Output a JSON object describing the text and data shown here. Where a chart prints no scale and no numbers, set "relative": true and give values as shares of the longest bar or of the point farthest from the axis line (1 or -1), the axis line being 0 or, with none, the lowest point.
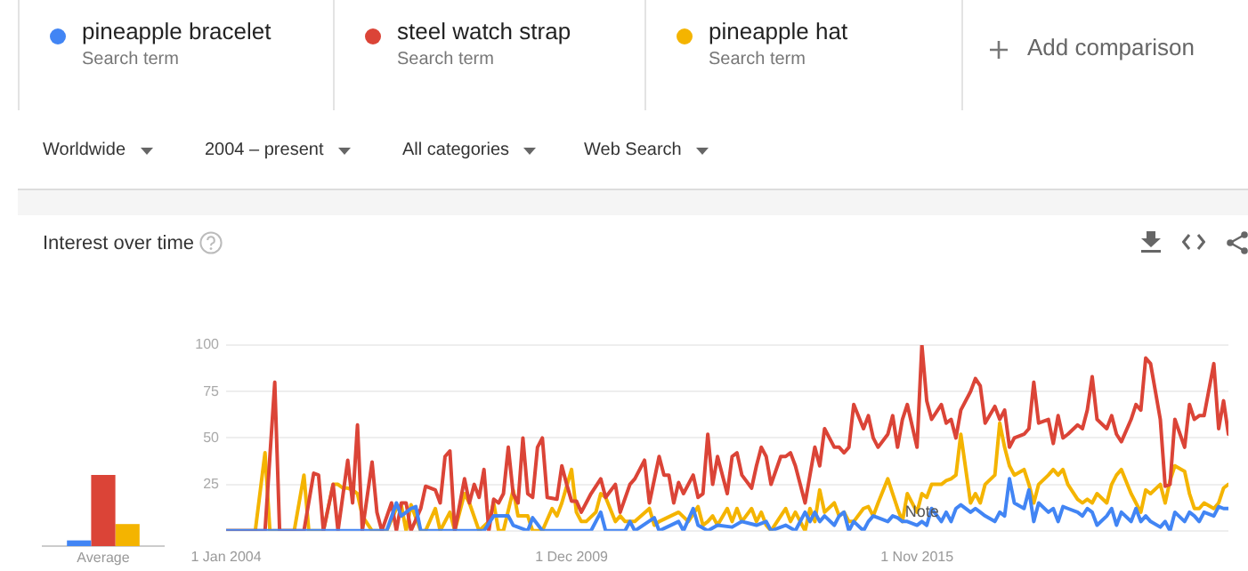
{
  "chart_data": [
    {
      "type": "other",
      "annotations": [
        "Search term",
        "Search term",
        "Search term",
        "Add comparison",
        "Worldwide",
        "2004 – present",
        "All categories",
        "Web Search"
      ]
    },
    {
      "type": "bar",
      "relative": true,
      "categories": [
        "Average"
      ],
      "series": [
        {
          "color": "#4285f4",
          "values": [
            0.08
          ]
        },
        {
          "color": "#db4437",
          "values": [
            1
          ]
        },
        {
          "color": "#f4b400",
          "values": [
            0.31
          ]
        }
      ]
    },
    {
      "type": "line",
      "title": "Interest over time",
      "legend": "top",
      "grid": "y",
      "marker": "none",
      "line_style": "solid",
      "xlim": [
        "2004-01",
        "2021-03"
      ],
      "xticks": [
        {
          "value": "2004-01",
          "label": "1 Jan 2004"
        },
        {
          "value": "2009-12",
          "label": "1 Dec 2009"
        },
        {
          "value": "2015-11",
          "label": "1 Nov 2015"
        }
      ],
      "ylim": [
        0,
        100
      ],
      "yticks": [
        {
          "value": 0,
          "label": null
        },
        25,
        50,
        75,
        100
      ],
      "annotations": [
        {
          "text": "Note",
          "x": "2015-12",
          "y": 5
        }
      ],
      "series": [
        {
          "name": "pineapple bracelet",
          "color": "#4285f4",
          "x": [
            "2004-01",
            "2006-10",
            "2006-12",
            "2007-01",
            "2007-03",
            "2007-04",
            "2007-05",
            "2008-06",
            "2008-08",
            "2008-11",
            "2008-12",
            "2009-03",
            "2009-04",
            "2009-06",
            "2010-04",
            "2010-06",
            "2010-07",
            "2010-11",
            "2010-12",
            "2011-01",
            "2011-05",
            "2011-06",
            "2011-10",
            "2011-11",
            "2012-01",
            "2012-02",
            "2012-04",
            "2012-06",
            "2012-09",
            "2012-11",
            "2013-02",
            "2013-04",
            "2013-05",
            "2013-08",
            "2013-10",
            "2013-12",
            "2014-01",
            "2014-02",
            "2014-03",
            "2014-04",
            "2014-06",
            "2014-07",
            "2014-08",
            "2014-09",
            "2014-10",
            "2014-12",
            "2015-01",
            "2015-02",
            "2015-03",
            "2015-05",
            "2015-06",
            "2015-07",
            "2015-08",
            "2015-09",
            "2015-11",
            "2015-12",
            "2016-01",
            "2016-02",
            "2016-04",
            "2016-05",
            "2016-06",
            "2016-07",
            "2016-08",
            "2016-10",
            "2016-11",
            "2016-12",
            "2017-01",
            "2017-03",
            "2017-04",
            "2017-05",
            "2017-06",
            "2017-07",
            "2017-09",
            "2017-10",
            "2017-11",
            "2017-12",
            "2018-02",
            "2018-03",
            "2018-04",
            "2018-05",
            "2018-06",
            "2018-08",
            "2018-09",
            "2018-10",
            "2018-11",
            "2018-12",
            "2019-02",
            "2019-03",
            "2019-04",
            "2019-05",
            "2019-07",
            "2019-08",
            "2019-09",
            "2019-10",
            "2019-11",
            "2020-01",
            "2020-02",
            "2020-03",
            "2020-04",
            "2020-06",
            "2020-07",
            "2020-08",
            "2020-09",
            "2020-10",
            "2020-12",
            "2021-01",
            "2021-02",
            "2021-03"
          ],
          "values": [
            0,
            0,
            15,
            8,
            12,
            13,
            0,
            0,
            8,
            8,
            3,
            0,
            7,
            0,
            0,
            10,
            0,
            0,
            5,
            0,
            7,
            0,
            5,
            0,
            12,
            3,
            0,
            3,
            2,
            5,
            3,
            5,
            0,
            3,
            0,
            10,
            5,
            10,
            5,
            8,
            3,
            8,
            10,
            0,
            5,
            0,
            5,
            8,
            7,
            5,
            8,
            7,
            5,
            5,
            3,
            5,
            3,
            12,
            5,
            10,
            5,
            12,
            14,
            10,
            12,
            10,
            8,
            5,
            10,
            8,
            28,
            15,
            12,
            22,
            5,
            15,
            10,
            12,
            5,
            13,
            12,
            10,
            8,
            12,
            10,
            3,
            8,
            12,
            3,
            10,
            5,
            12,
            5,
            8,
            5,
            2,
            5,
            0,
            10,
            5,
            10,
            8,
            5,
            10,
            8,
            13,
            12,
            12
          ]
        },
        {
          "name": "steel watch strap",
          "color": "#db4437",
          "x": [
            "2004-01",
            "2004-09",
            "2004-11",
            "2004-12",
            "2005-05",
            "2005-07",
            "2005-08",
            "2005-09",
            "2005-11",
            "2005-12",
            "2006-02",
            "2006-03",
            "2006-04",
            "2006-05",
            "2006-07",
            "2006-08",
            "2006-09",
            "2006-11",
            "2006-12",
            "2007-01",
            "2007-02",
            "2007-03",
            "2007-05",
            "2007-06",
            "2007-08",
            "2007-09",
            "2007-10",
            "2007-11",
            "2007-12",
            "2008-02",
            "2008-03",
            "2008-04",
            "2008-05",
            "2008-06",
            "2008-07",
            "2008-08",
            "2008-09",
            "2008-10",
            "2008-11",
            "2008-12",
            "2009-01",
            "2009-02",
            "2009-03",
            "2009-04",
            "2009-05",
            "2009-06",
            "2009-07",
            "2009-09",
            "2009-10",
            "2009-11",
            "2009-12",
            "2010-01",
            "2010-02",
            "2010-03",
            "2010-04",
            "2010-06",
            "2010-07",
            "2010-09",
            "2010-10",
            "2010-12",
            "2011-01",
            "2011-03",
            "2011-04",
            "2011-06",
            "2011-07",
            "2011-08",
            "2011-09",
            "2011-10",
            "2011-11",
            "2012-01",
            "2012-02",
            "2012-03",
            "2012-04",
            "2012-05",
            "2012-06",
            "2012-08",
            "2012-09",
            "2012-10",
            "2012-11",
            "2013-01",
            "2013-02",
            "2013-03",
            "2013-04",
            "2013-05",
            "2013-07",
            "2013-08",
            "2013-09",
            "2013-10",
            "2013-12",
            "2014-01",
            "2014-02",
            "2014-03",
            "2014-04",
            "2014-06",
            "2014-07",
            "2014-08",
            "2014-09",
            "2014-10",
            "2014-12",
            "2015-01",
            "2015-02",
            "2015-03",
            "2015-05",
            "2015-06",
            "2015-07",
            "2015-08",
            "2015-09",
            "2015-11",
            "2015-12",
            "2016-01",
            "2016-02",
            "2016-04",
            "2016-05",
            "2016-06",
            "2016-07",
            "2016-08",
            "2016-10",
            "2016-11",
            "2016-12",
            "2017-01",
            "2017-03",
            "2017-04",
            "2017-05",
            "2017-06",
            "2017-07",
            "2017-09",
            "2017-10",
            "2017-11",
            "2017-12",
            "2018-02",
            "2018-03",
            "2018-04",
            "2018-05",
            "2018-06",
            "2018-08",
            "2018-09",
            "2018-10",
            "2018-11",
            "2018-12",
            "2019-02",
            "2019-03",
            "2019-04",
            "2019-05",
            "2019-07",
            "2019-08",
            "2019-09",
            "2019-10",
            "2019-11",
            "2020-01",
            "2020-02",
            "2020-03",
            "2020-04",
            "2020-06",
            "2020-07",
            "2020-08",
            "2020-09",
            "2020-10",
            "2020-12",
            "2021-01",
            "2021-02",
            "2021-03"
          ],
          "values": [
            0,
            0,
            80,
            0,
            0,
            31,
            30,
            0,
            25,
            0,
            38,
            15,
            57,
            0,
            37,
            10,
            0,
            15,
            0,
            15,
            15,
            0,
            12,
            24,
            22,
            15,
            40,
            43,
            0,
            28,
            15,
            25,
            18,
            33,
            0,
            17,
            15,
            20,
            45,
            20,
            15,
            50,
            20,
            18,
            45,
            50,
            18,
            17,
            35,
            25,
            16,
            16,
            10,
            15,
            20,
            28,
            18,
            25,
            10,
            25,
            28,
            38,
            15,
            40,
            30,
            30,
            15,
            26,
            20,
            30,
            18,
            20,
            52,
            25,
            40,
            20,
            40,
            42,
            30,
            23,
            35,
            45,
            40,
            25,
            40,
            40,
            42,
            35,
            15,
            30,
            45,
            35,
            55,
            45,
            45,
            42,
            45,
            68,
            55,
            62,
            50,
            45,
            52,
            62,
            45,
            60,
            68,
            45,
            100,
            70,
            60,
            68,
            58,
            60,
            50,
            65,
            75,
            82,
            78,
            58,
            67,
            60,
            65,
            45,
            50,
            52,
            55,
            80,
            58,
            60,
            47,
            62,
            50,
            52,
            57,
            55,
            65,
            83,
            60,
            55,
            62,
            52,
            48,
            60,
            68,
            65,
            93,
            90,
            60,
            24,
            25,
            60,
            45,
            68,
            60,
            62,
            62,
            90,
            55,
            70,
            52
          ]
        },
        {
          "name": "pineapple hat",
          "color": "#f4b400",
          "x": [
            "2004-01",
            "2004-07",
            "2004-09",
            "2004-10",
            "2005-03",
            "2005-05",
            "2005-06",
            "2005-09",
            "2005-11",
            "2005-12",
            "2006-01",
            "2006-02",
            "2006-03",
            "2006-04",
            "2006-05",
            "2006-07",
            "2006-10",
            "2006-12",
            "2007-01",
            "2007-02",
            "2007-03",
            "2007-05",
            "2007-06",
            "2007-08",
            "2007-09",
            "2007-11",
            "2007-12",
            "2008-02",
            "2008-03",
            "2008-05",
            "2008-07",
            "2008-08",
            "2008-09",
            "2008-10",
            "2008-12",
            "2009-01",
            "2009-03",
            "2009-04",
            "2009-06",
            "2009-08",
            "2009-09",
            "2009-10",
            "2009-12",
            "2010-01",
            "2010-02",
            "2010-03",
            "2010-05",
            "2010-06",
            "2010-07",
            "2010-09",
            "2010-10",
            "2010-11",
            "2011-01",
            "2011-04",
            "2011-05",
            "2011-06",
            "2011-10",
            "2011-12",
            "2012-02",
            "2012-03",
            "2012-04",
            "2012-05",
            "2012-06",
            "2012-08",
            "2012-09",
            "2012-10",
            "2012-11",
            "2013-01",
            "2013-02",
            "2013-03",
            "2013-04",
            "2013-05",
            "2013-07",
            "2013-08",
            "2013-09",
            "2013-10",
            "2013-12",
            "2014-01",
            "2014-02",
            "2014-03",
            "2014-04",
            "2014-06",
            "2014-07",
            "2014-08",
            "2014-09",
            "2014-10",
            "2014-12",
            "2015-01",
            "2015-02",
            "2015-03",
            "2015-05",
            "2015-06",
            "2015-07",
            "2015-08",
            "2015-09",
            "2015-11",
            "2015-12",
            "2016-01",
            "2016-02",
            "2016-04",
            "2016-05",
            "2016-06",
            "2016-07",
            "2016-08",
            "2016-10",
            "2016-11",
            "2016-12",
            "2017-01",
            "2017-03",
            "2017-04",
            "2017-05",
            "2017-06",
            "2017-07",
            "2017-09",
            "2017-10",
            "2017-11",
            "2017-12",
            "2018-02",
            "2018-03",
            "2018-04",
            "2018-05",
            "2018-06",
            "2018-08",
            "2018-09",
            "2018-10",
            "2018-11",
            "2018-12",
            "2019-02",
            "2019-03",
            "2019-04",
            "2019-05",
            "2019-07",
            "2019-08",
            "2019-09",
            "2019-10",
            "2019-11",
            "2020-01",
            "2020-02",
            "2020-03",
            "2020-04",
            "2020-06",
            "2020-07",
            "2020-08",
            "2020-09",
            "2020-10",
            "2020-12",
            "2021-01",
            "2021-02",
            "2021-03"
          ],
          "values": [
            0,
            0,
            42,
            0,
            0,
            30,
            0,
            0,
            25,
            25,
            23,
            23,
            22,
            20,
            8,
            0,
            0,
            12,
            14,
            0,
            14,
            0,
            0,
            12,
            0,
            10,
            0,
            20,
            15,
            0,
            5,
            15,
            0,
            0,
            22,
            8,
            8,
            0,
            0,
            12,
            8,
            15,
            33,
            10,
            5,
            5,
            10,
            20,
            18,
            5,
            8,
            5,
            5,
            12,
            3,
            5,
            10,
            5,
            13,
            3,
            5,
            8,
            3,
            12,
            5,
            12,
            5,
            12,
            5,
            10,
            3,
            0,
            8,
            12,
            5,
            10,
            0,
            12,
            5,
            22,
            10,
            15,
            8,
            10,
            5,
            5,
            12,
            13,
            8,
            15,
            28,
            20,
            12,
            5,
            20,
            10,
            20,
            18,
            25,
            25,
            27,
            28,
            30,
            52,
            15,
            20,
            15,
            25,
            30,
            58,
            45,
            35,
            30,
            33,
            25,
            15,
            25,
            30,
            33,
            30,
            33,
            25,
            17,
            15,
            17,
            15,
            20,
            15,
            25,
            30,
            33,
            20,
            15,
            10,
            22,
            20,
            25,
            15,
            27,
            35,
            32,
            20,
            12,
            12,
            15,
            12,
            15,
            23,
            25
          ]
        }
      ]
    }
  ]
}
